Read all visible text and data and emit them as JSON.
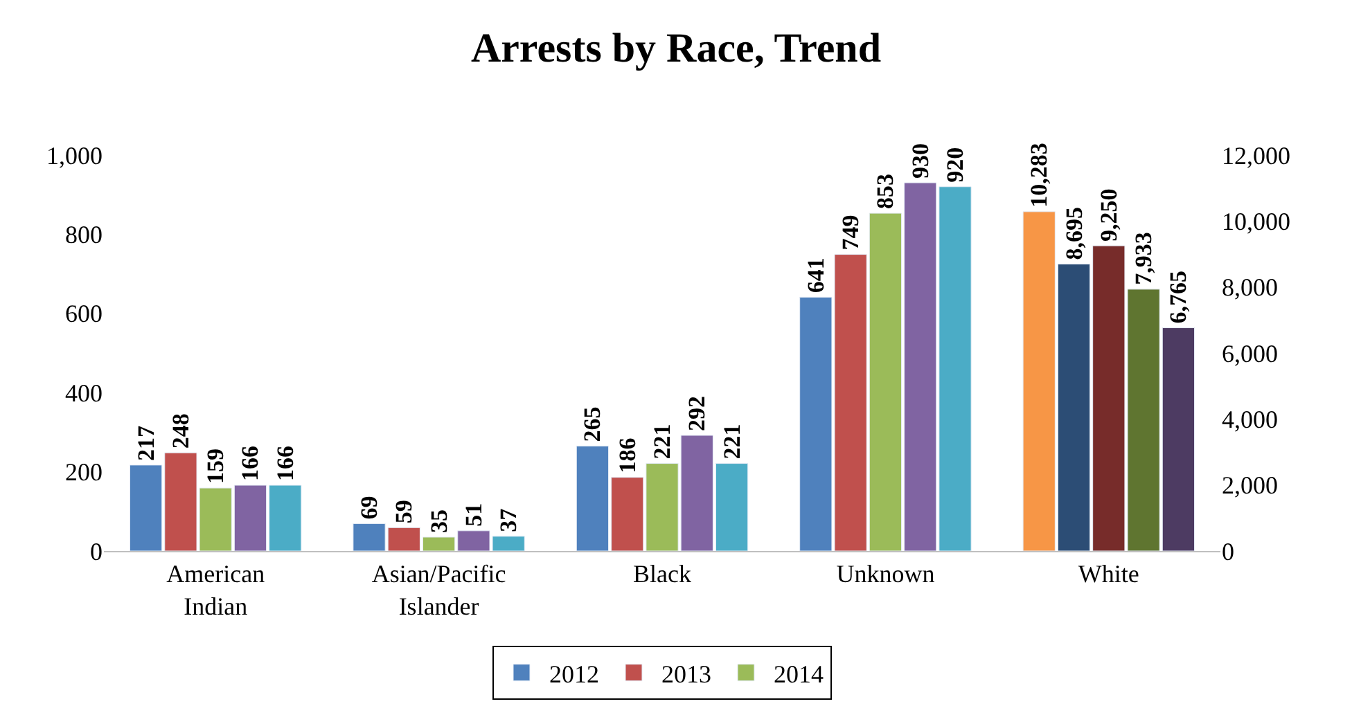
{
  "chart_data": {
    "type": "bar",
    "title": "Arrests by Race, Trend",
    "categories": [
      "American Indian",
      "Asian/Pacific Islander",
      "Black",
      "Unknown",
      "White"
    ],
    "series": [
      {
        "name": "2012",
        "color": "#4f81bd",
        "values": [
          217,
          69,
          265,
          641,
          null
        ],
        "value_labels": [
          "217",
          "69",
          "265",
          "641",
          null
        ]
      },
      {
        "name": "2013",
        "color": "#c0504d",
        "values": [
          248,
          59,
          186,
          749,
          null
        ],
        "value_labels": [
          "248",
          "59",
          "186",
          "749",
          null
        ]
      },
      {
        "name": "2014",
        "color": "#9bbb59",
        "values": [
          159,
          35,
          221,
          853,
          null
        ],
        "value_labels": [
          "159",
          "35",
          "221",
          "853",
          null
        ]
      },
      {
        "color": "#8064a2",
        "values": [
          166,
          51,
          292,
          930,
          null
        ],
        "value_labels": [
          "166",
          "51",
          "292",
          "930",
          null
        ]
      },
      {
        "color": "#4bacc6",
        "values": [
          166,
          37,
          221,
          920,
          null
        ],
        "value_labels": [
          "166",
          "37",
          "221",
          "920",
          null
        ]
      },
      {
        "color": "#f79646",
        "axis": "y2",
        "values": [
          null,
          null,
          null,
          null,
          10283
        ],
        "value_labels": [
          null,
          null,
          null,
          null,
          "10,283"
        ]
      },
      {
        "color": "#2c4d75",
        "axis": "y2",
        "values": [
          null,
          null,
          null,
          null,
          8695
        ],
        "value_labels": [
          null,
          null,
          null,
          null,
          "8,695"
        ]
      },
      {
        "color": "#772c2a",
        "axis": "y2",
        "values": [
          null,
          null,
          null,
          null,
          9250
        ],
        "value_labels": [
          null,
          null,
          null,
          null,
          "9,250"
        ]
      },
      {
        "color": "#5f7530",
        "axis": "y2",
        "values": [
          null,
          null,
          null,
          null,
          7933
        ],
        "value_labels": [
          null,
          null,
          null,
          null,
          "7,933"
        ]
      },
      {
        "color": "#4d3b62",
        "axis": "y2",
        "values": [
          null,
          null,
          null,
          null,
          6765
        ],
        "value_labels": [
          null,
          null,
          null,
          null,
          "6,765"
        ]
      }
    ],
    "ylim": [
      0,
      1000
    ],
    "yticks": [
      0,
      200,
      400,
      600,
      800,
      {
        "value": 1000,
        "label": "1,000"
      }
    ],
    "y2lim": [
      0,
      12000
    ],
    "y2ticks": [
      0,
      {
        "value": 2000,
        "label": "2,000"
      },
      {
        "value": 4000,
        "label": "4,000"
      },
      {
        "value": 6000,
        "label": "6,000"
      },
      {
        "value": 8000,
        "label": "8,000"
      },
      {
        "value": 10000,
        "label": "10,000"
      },
      {
        "value": 12000,
        "label": "12,000"
      }
    ],
    "legend": "bottom"
  }
}
